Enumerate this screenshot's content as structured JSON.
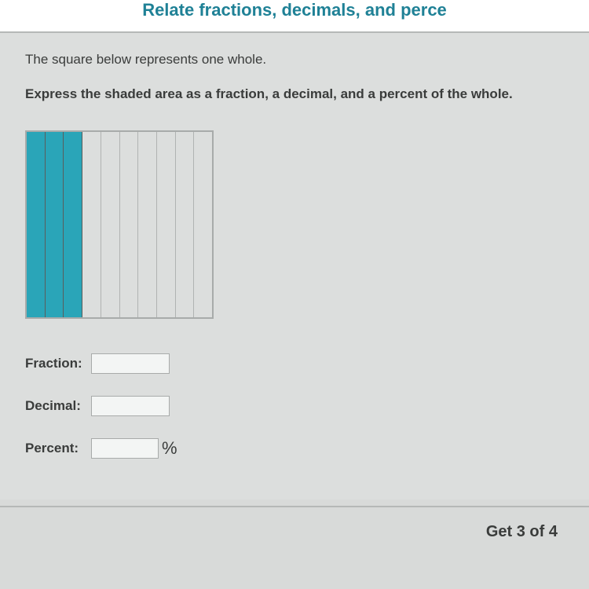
{
  "header": {
    "title": "Relate fractions, decimals, and perce"
  },
  "content": {
    "intro": "The square below represents one whole.",
    "question": "Express the shaded area as a fraction, a decimal, and a percent of the whole."
  },
  "grid": {
    "total_columns": 10,
    "shaded_columns": 3,
    "shaded_color": "#2aa5b8",
    "unshaded_color": "transparent",
    "border_color": "#a8abaa"
  },
  "inputs": {
    "fraction": {
      "label": "Fraction:",
      "value": ""
    },
    "decimal": {
      "label": "Decimal:",
      "value": ""
    },
    "percent": {
      "label": "Percent:",
      "value": "",
      "suffix": "%"
    }
  },
  "footer": {
    "text": "Get 3 of 4"
  },
  "colors": {
    "background": "#dcdedd",
    "header_bg": "#ffffff",
    "header_text": "#1f8196",
    "body_text": "#3a3c3b",
    "divider": "#b5b8b7"
  }
}
